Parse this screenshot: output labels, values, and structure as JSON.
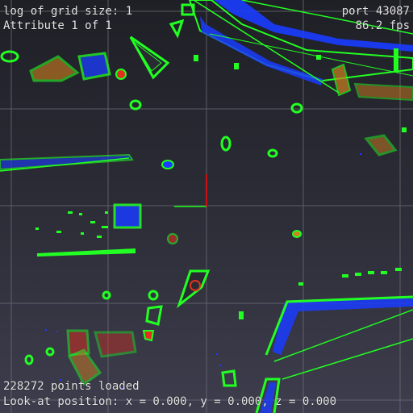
{
  "hud": {
    "grid_label": "log of grid size: ",
    "grid_value": "1",
    "attribute_label": "Attribute 1 of 1",
    "port_label": "port 43087",
    "fps_label": "86.2 fps",
    "points_label": "228272 points loaded",
    "lookat_label": "Look-at position: x = 0.000, y = 0.000, z = 0.000"
  },
  "colors": {
    "background_top": "#1f1f26",
    "background_bottom": "#3d3d4d",
    "grid": "#6a6a78",
    "outline": "#22ff22",
    "points_blue": "#1a3cff",
    "points_red": "#e03020",
    "points_orange": "#d08020",
    "axis_x": "#22cc22",
    "axis_y": "#cc1111"
  }
}
